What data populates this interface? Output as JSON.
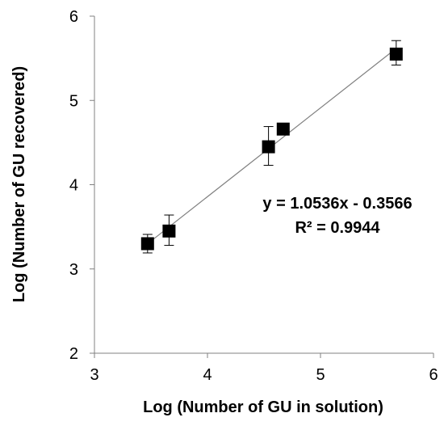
{
  "chart_data": {
    "type": "scatter",
    "xlabel": "Log (Number of GU in solution)",
    "ylabel": "Log (Number of  GU  recovered)",
    "xlim": [
      3,
      6
    ],
    "ylim": [
      2,
      6
    ],
    "xticks": [
      "3",
      "4",
      "5",
      "6"
    ],
    "yticks": [
      "2",
      "3",
      "4",
      "5",
      "6"
    ],
    "grid": false,
    "legend": "none",
    "marker_color": "#000000",
    "trendline_color": "#808080",
    "series": [
      {
        "x": [
          3.47,
          3.66,
          4.54,
          4.67,
          5.67
        ],
        "y": [
          3.3,
          3.45,
          4.45,
          4.66,
          5.55
        ],
        "err_low": [
          0.11,
          0.17,
          0.22,
          0.0,
          0.13
        ],
        "err_high": [
          0.11,
          0.19,
          0.24,
          0.0,
          0.16
        ]
      }
    ],
    "trendline": {
      "slope": 1.0536,
      "intercept": -0.3566,
      "x_range": [
        3.47,
        5.67
      ]
    },
    "annotations": {
      "equation": "y = 1.0536x - 0.3566",
      "r_squared": "R² = 0.9944"
    }
  }
}
